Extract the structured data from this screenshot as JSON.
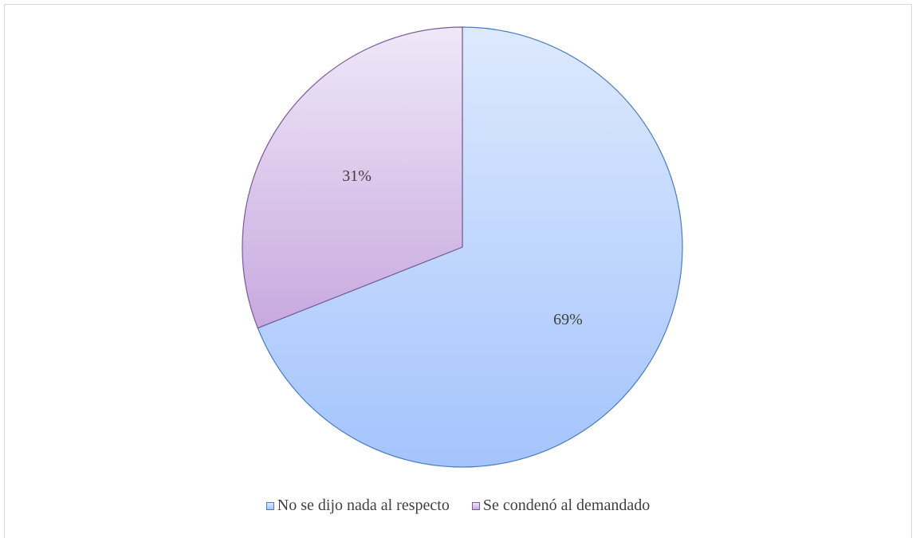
{
  "chart_data": {
    "type": "pie",
    "title": "",
    "series": [
      {
        "name": "No se dijo nada al respecto",
        "value": 69,
        "label": "69%",
        "color_top": "#dde9fd",
        "color_bottom": "#a4c4fd",
        "stroke": "#4a7ebb"
      },
      {
        "name": "Se condenó al demandado",
        "value": 31,
        "label": "31%",
        "color_top": "#efe8f8",
        "color_bottom": "#c8a9df",
        "stroke": "#7a5a98"
      }
    ],
    "legend_position": "bottom",
    "start_angle": "12 o'clock",
    "direction": "clockwise"
  }
}
